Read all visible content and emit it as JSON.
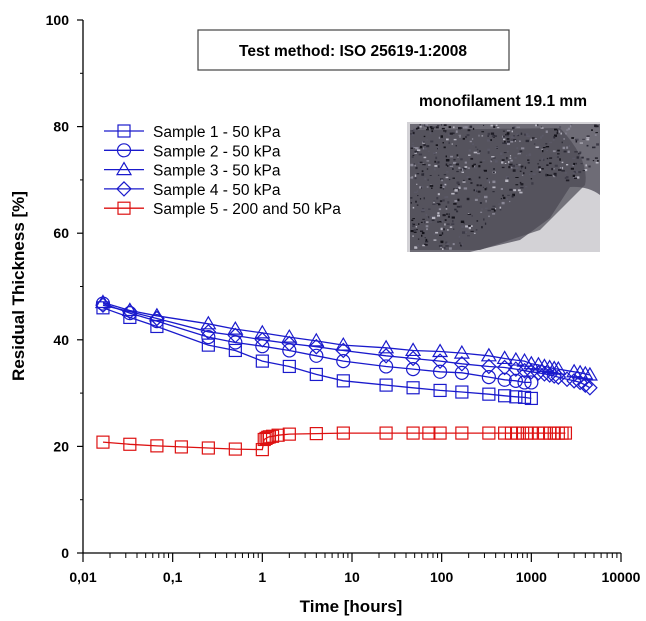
{
  "chart_data": {
    "type": "line",
    "xlabel": "Time [hours]",
    "ylabel": "Residual Thickness [%]",
    "x_scale": "log",
    "xlim": [
      0.01,
      10000
    ],
    "ylim": [
      0,
      100
    ],
    "x_ticks": [
      {
        "value": 0.01,
        "label": "0,01"
      },
      {
        "value": 0.1,
        "label": "0,1"
      },
      {
        "value": 1,
        "label": "1"
      },
      {
        "value": 10,
        "label": "10"
      },
      {
        "value": 100,
        "label": "100"
      },
      {
        "value": 1000,
        "label": "1000"
      },
      {
        "value": 10000,
        "label": "10000"
      }
    ],
    "y_ticks": [
      {
        "value": 0,
        "label": "0"
      },
      {
        "value": 20,
        "label": "20"
      },
      {
        "value": 40,
        "label": "40"
      },
      {
        "value": 60,
        "label": "60"
      },
      {
        "value": 80,
        "label": "80"
      },
      {
        "value": 100,
        "label": "100"
      }
    ],
    "grid": false,
    "legend_position": "top-left",
    "annotations": {
      "test_method": "Test method: ISO 25619-1:2008",
      "photo_caption": "monofilament 19.1 mm"
    },
    "series": [
      {
        "name": "Sample 1 - 50 kPa",
        "marker": "square",
        "color": "#1a1acc",
        "points": [
          [
            0.0167,
            46
          ],
          [
            0.0333,
            44.2
          ],
          [
            0.0667,
            42.5
          ],
          [
            0.25,
            39
          ],
          [
            0.5,
            38
          ],
          [
            1,
            36
          ],
          [
            2,
            35
          ],
          [
            4,
            33.5
          ],
          [
            8,
            32.3
          ],
          [
            24,
            31.5
          ],
          [
            48,
            31
          ],
          [
            96,
            30.5
          ],
          [
            168,
            30.2
          ],
          [
            336,
            29.8
          ],
          [
            504,
            29.5
          ],
          [
            672,
            29.3
          ],
          [
            840,
            29.2
          ],
          [
            1000,
            29
          ]
        ]
      },
      {
        "name": "Sample 2 - 50 kPa",
        "marker": "circle",
        "color": "#1a1acc",
        "points": [
          [
            0.0167,
            46.8
          ],
          [
            0.0333,
            45
          ],
          [
            0.0667,
            43.5
          ],
          [
            0.25,
            40.5
          ],
          [
            0.5,
            39.5
          ],
          [
            1,
            38.8
          ],
          [
            2,
            38
          ],
          [
            4,
            37
          ],
          [
            8,
            36
          ],
          [
            24,
            35
          ],
          [
            48,
            34.5
          ],
          [
            96,
            34
          ],
          [
            168,
            33.8
          ],
          [
            336,
            33
          ],
          [
            504,
            32.5
          ],
          [
            672,
            32.3
          ],
          [
            840,
            32
          ],
          [
            1000,
            32
          ]
        ]
      },
      {
        "name": "Sample 3 - 50 kPa",
        "marker": "triangle",
        "color": "#1a1acc",
        "points": [
          [
            0.0167,
            47
          ],
          [
            0.0333,
            45.5
          ],
          [
            0.0667,
            44.5
          ],
          [
            0.25,
            43
          ],
          [
            0.5,
            42
          ],
          [
            1,
            41.3
          ],
          [
            2,
            40.5
          ],
          [
            4,
            39.8
          ],
          [
            8,
            39
          ],
          [
            24,
            38.5
          ],
          [
            48,
            38
          ],
          [
            96,
            37.8
          ],
          [
            168,
            37.5
          ],
          [
            336,
            37
          ],
          [
            504,
            36.5
          ],
          [
            672,
            36.2
          ],
          [
            840,
            36
          ],
          [
            1000,
            35.5
          ],
          [
            1200,
            35.3
          ],
          [
            1400,
            35
          ],
          [
            1600,
            34.8
          ],
          [
            1800,
            34.6
          ],
          [
            2000,
            34.5
          ],
          [
            3000,
            34
          ],
          [
            3500,
            33.8
          ],
          [
            4000,
            33.6
          ],
          [
            4500,
            33.4
          ]
        ]
      },
      {
        "name": "Sample 4 - 50 kPa",
        "marker": "diamond",
        "color": "#1a1acc",
        "points": [
          [
            0.0167,
            46.5
          ],
          [
            0.0333,
            45.3
          ],
          [
            0.0667,
            44
          ],
          [
            0.25,
            41.5
          ],
          [
            0.5,
            40.8
          ],
          [
            1,
            40
          ],
          [
            2,
            39.3
          ],
          [
            4,
            38.7
          ],
          [
            8,
            38
          ],
          [
            24,
            37
          ],
          [
            48,
            36.5
          ],
          [
            96,
            36
          ],
          [
            168,
            35.5
          ],
          [
            336,
            35
          ],
          [
            504,
            34.8
          ],
          [
            672,
            34.5
          ],
          [
            840,
            34.2
          ],
          [
            1000,
            34
          ],
          [
            1200,
            33.8
          ],
          [
            1400,
            33.6
          ],
          [
            1600,
            33.4
          ],
          [
            1800,
            33.2
          ],
          [
            2000,
            33
          ],
          [
            2500,
            32.6
          ],
          [
            3000,
            32.3
          ],
          [
            3500,
            32
          ],
          [
            4000,
            31.5
          ],
          [
            4500,
            31
          ]
        ]
      },
      {
        "name": "Sample 5 - 200 and 50 kPa",
        "marker": "square",
        "color": "#dd1111",
        "points": [
          [
            0.0167,
            20.8
          ],
          [
            0.0333,
            20.4
          ],
          [
            0.0667,
            20.1
          ],
          [
            0.125,
            19.9
          ],
          [
            0.25,
            19.7
          ],
          [
            0.5,
            19.5
          ],
          [
            1,
            19.4
          ],
          [
            1.05,
            21.3
          ],
          [
            1.1,
            21.5
          ],
          [
            1.15,
            21.7
          ],
          [
            1.2,
            21.8
          ],
          [
            1.3,
            21.9
          ],
          [
            1.5,
            22.1
          ],
          [
            2,
            22.3
          ],
          [
            4,
            22.4
          ],
          [
            8,
            22.5
          ],
          [
            24,
            22.5
          ],
          [
            48,
            22.5
          ],
          [
            72,
            22.5
          ],
          [
            96,
            22.5
          ],
          [
            168,
            22.5
          ],
          [
            336,
            22.5
          ],
          [
            504,
            22.5
          ],
          [
            600,
            22.5
          ],
          [
            700,
            22.5
          ],
          [
            800,
            22.5
          ],
          [
            900,
            22.5
          ],
          [
            1000,
            22.5
          ],
          [
            1200,
            22.5
          ],
          [
            1400,
            22.5
          ],
          [
            1600,
            22.5
          ],
          [
            1800,
            22.5
          ],
          [
            2000,
            22.5
          ],
          [
            2200,
            22.5
          ],
          [
            2400,
            22.5
          ]
        ]
      }
    ]
  }
}
